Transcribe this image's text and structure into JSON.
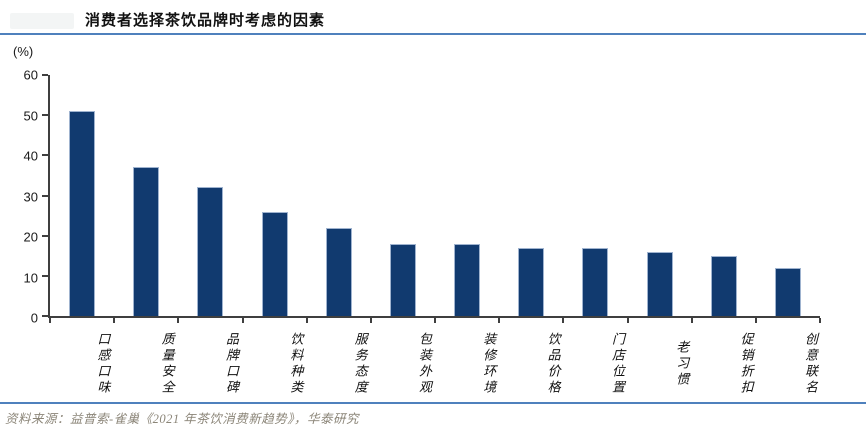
{
  "header": {
    "title": "消费者选择茶饮品牌时考虑的因素"
  },
  "chart_data": {
    "type": "bar",
    "title": "消费者选择茶饮品牌时考虑的因素",
    "unit_label": "(%)",
    "categories": [
      "口感口味",
      "质量安全",
      "品牌口碑",
      "饮料种类",
      "服务态度",
      "包装外观",
      "装修环境",
      "饮品价格",
      "门店位置",
      "老习惯",
      "促销折扣",
      "创意联名"
    ],
    "values": [
      51,
      37,
      32,
      26,
      22,
      18,
      18,
      17,
      17,
      16,
      15,
      12
    ],
    "xlabel": "",
    "ylabel": "(%)",
    "ylim": [
      0,
      60
    ],
    "ytick_step": 10,
    "grid": false,
    "legend": "none",
    "bar_color": "#113a6f"
  },
  "footer": {
    "source": "资料来源：益普索-雀巢《2021 年茶饮消费新趋势》，华泰研究"
  },
  "colors": {
    "bar": "#113a6f",
    "bar_edge": "#9fb3cf",
    "accent_line": "#4f81bd",
    "axis": "#3f3f3f",
    "footer_text": "#8b8578"
  }
}
